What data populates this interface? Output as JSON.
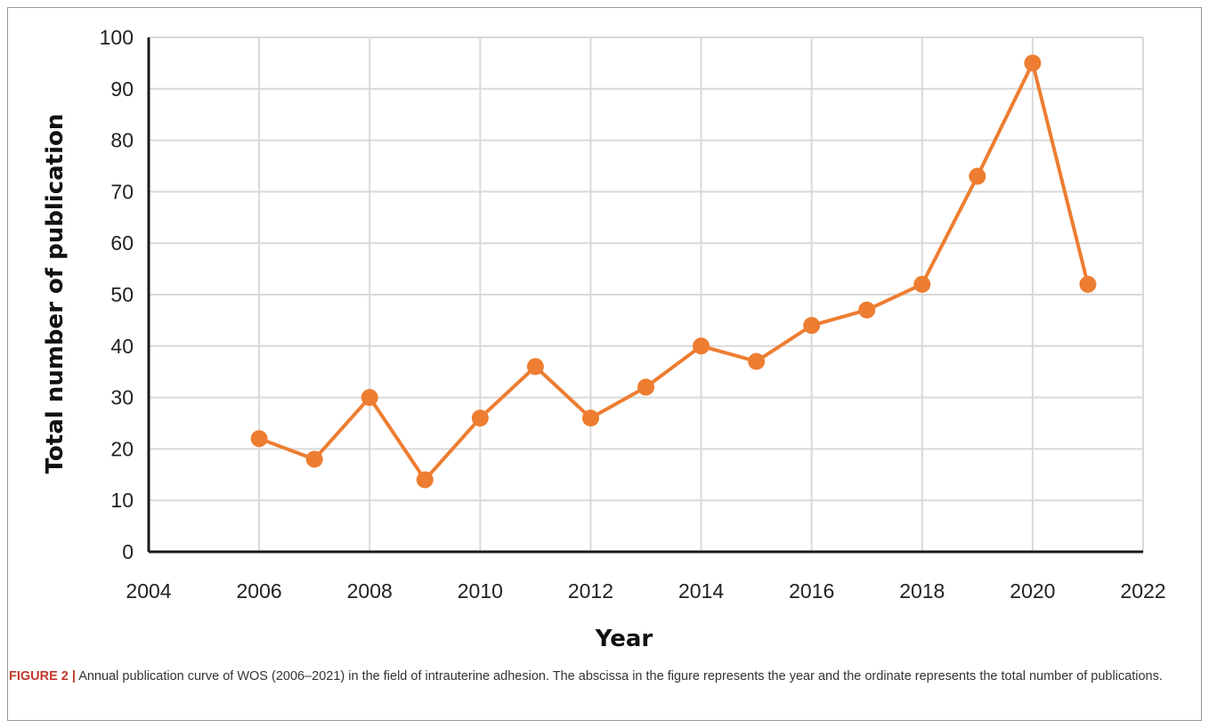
{
  "chart_data": {
    "type": "line",
    "title": "",
    "xlabel": "Year",
    "ylabel": "Total number of publication",
    "xlim": [
      2004,
      2022
    ],
    "ylim": [
      0,
      100
    ],
    "x_ticks": [
      2004,
      2006,
      2008,
      2010,
      2012,
      2014,
      2016,
      2018,
      2020,
      2022
    ],
    "y_ticks": [
      0,
      10,
      20,
      30,
      40,
      50,
      60,
      70,
      80,
      90,
      100
    ],
    "grid": true,
    "legend": "none",
    "series": [
      {
        "color": "#ED7D31",
        "x": [
          2006,
          2007,
          2008,
          2009,
          2010,
          2011,
          2012,
          2013,
          2014,
          2015,
          2016,
          2017,
          2018,
          2019,
          2020,
          2021
        ],
        "y": [
          22,
          18,
          30,
          14,
          26,
          36,
          26,
          32,
          40,
          37,
          44,
          47,
          52,
          73,
          95,
          52
        ]
      }
    ]
  },
  "caption": {
    "label": "FIGURE 2 |",
    "text": " Annual publication curve of WOS (2006–2021) in the field of intrauterine adhesion. The abscissa in the figure represents the year and the ordinate represents the total number of publications."
  }
}
